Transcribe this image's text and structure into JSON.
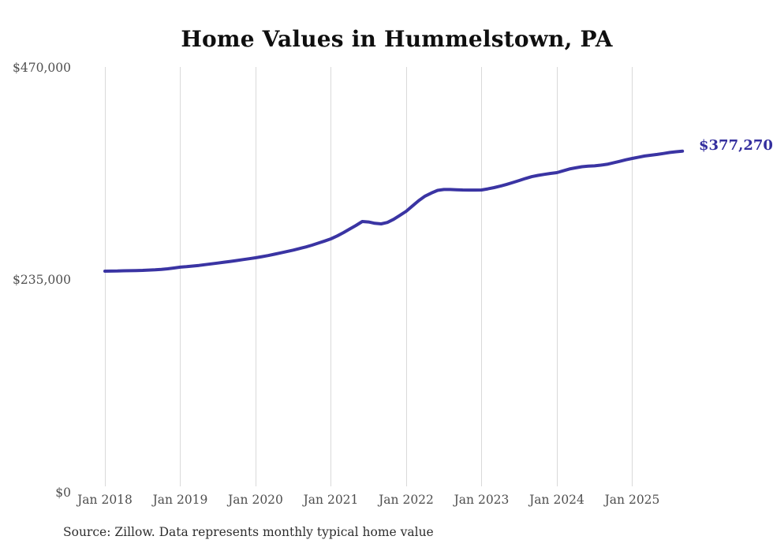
{
  "page": {
    "title": "Home Values in Hummelstown, PA",
    "source_note": "Source: Zillow. Data represents monthly typical home value"
  },
  "colors": {
    "line": "#3a34a3",
    "latest_label_text": "#332e9e",
    "grid": "#d9d9d9",
    "tick_text": "#4f4f4f",
    "title_text": "#0f0f0f",
    "source_text": "#2e2e2e",
    "background": "#ffffff"
  },
  "chart_data": {
    "type": "line",
    "title": "Home Values in Hummelstown, PA",
    "xlabel": "",
    "ylabel": "",
    "x_ticks": [
      "Jan 2018",
      "Jan 2019",
      "Jan 2020",
      "Jan 2021",
      "Jan 2022",
      "Jan 2023",
      "Jan 2024",
      "Jan 2025"
    ],
    "y_ticks": [
      "$470,000",
      "$235,000",
      "$0"
    ],
    "ylim": [
      0,
      470000
    ],
    "grid": "vertical-only",
    "legend": "none",
    "latest_value": 377270,
    "latest_value_label": "$377,270",
    "series": [
      {
        "name": "Typical home value (USD)",
        "start_month": "2018-01",
        "end_month": "2025-09",
        "frequency": "monthly",
        "values_usd": [
          244600,
          244700,
          244800,
          245000,
          245100,
          245300,
          245500,
          245800,
          246100,
          246500,
          247200,
          248100,
          249000,
          249600,
          250300,
          251000,
          251800,
          252700,
          253600,
          254500,
          255400,
          256400,
          257400,
          258400,
          259400,
          260600,
          261900,
          263300,
          264800,
          266300,
          267900,
          269600,
          271400,
          273400,
          275600,
          277900,
          280300,
          283600,
          287200,
          291200,
          295200,
          299500,
          299000,
          297500,
          296900,
          298500,
          302000,
          306300,
          310900,
          316800,
          322600,
          327600,
          331000,
          334000,
          334900,
          334900,
          334700,
          334400,
          334300,
          334300,
          334400,
          335600,
          337000,
          338700,
          340600,
          342700,
          344900,
          347100,
          349100,
          350500,
          351700,
          352700,
          353600,
          355600,
          357600,
          358900,
          360100,
          360700,
          361100,
          361900,
          362800,
          364400,
          366100,
          367800,
          369300,
          370700,
          372000,
          372900,
          373700,
          374800,
          375900,
          376700,
          377270
        ]
      }
    ]
  }
}
